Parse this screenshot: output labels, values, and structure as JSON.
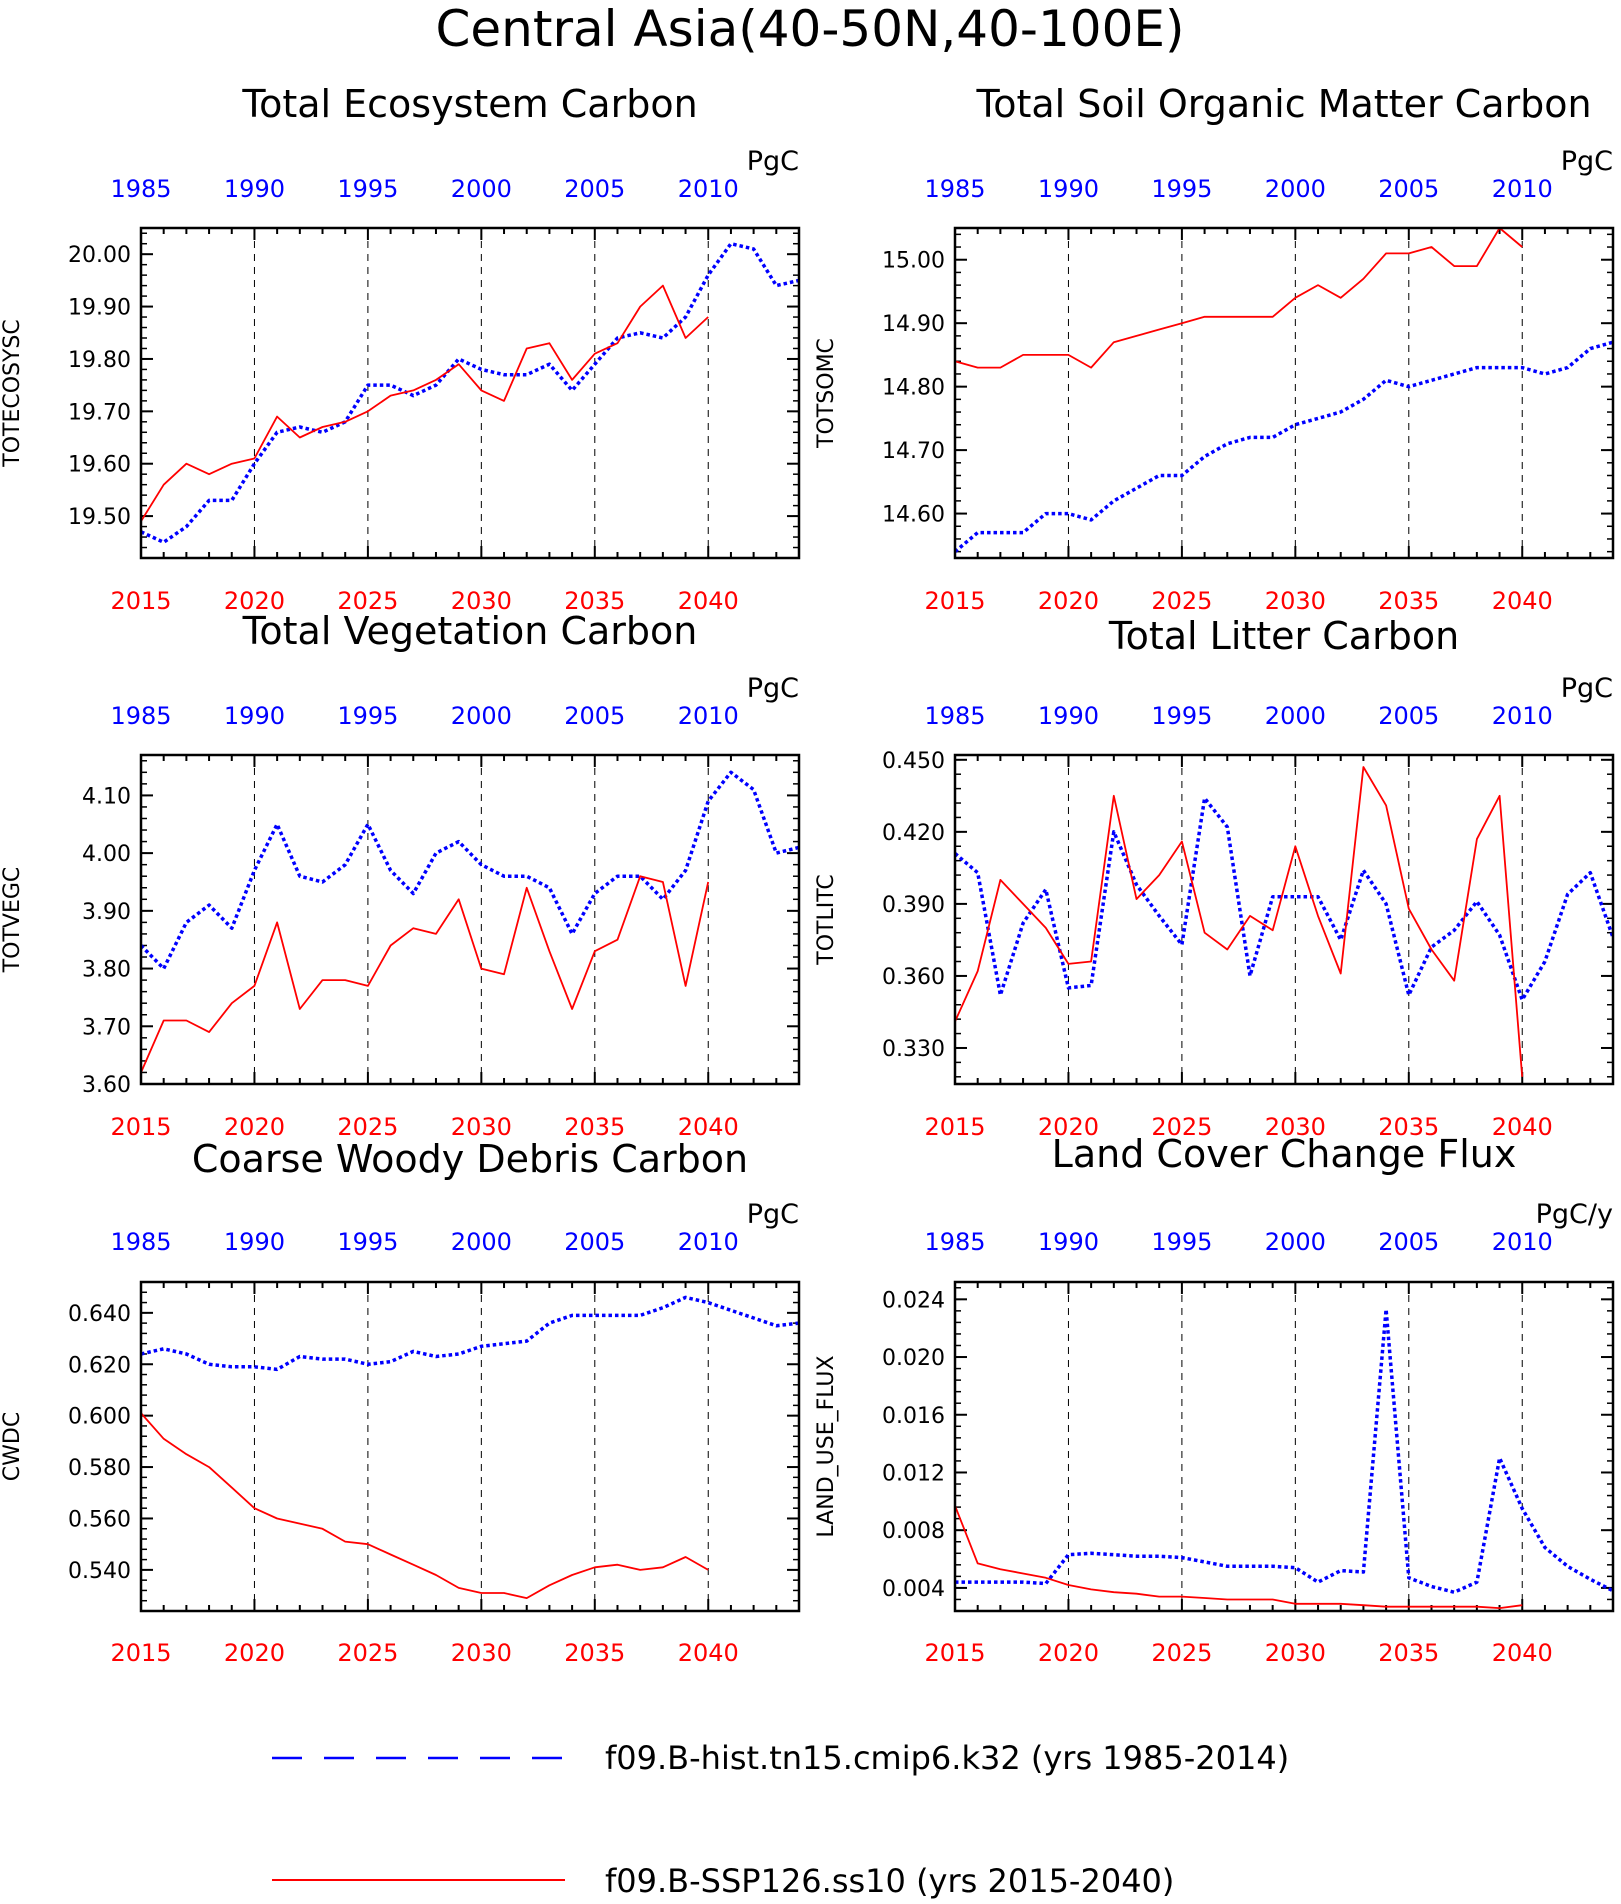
{
  "figure_title": "Central Asia(40-50N,40-100E)",
  "colors": {
    "hist": "#0000ff",
    "ssp": "#ff0000",
    "axis": "#000000",
    "grid": "#000000"
  },
  "axes": {
    "bottom_ticks": [
      "2015",
      "2020",
      "2025",
      "2030",
      "2035",
      "2040"
    ],
    "top_ticks": [
      "1985",
      "1990",
      "1995",
      "2000",
      "2005",
      "2010"
    ],
    "year_range_bottom": [
      2015,
      2044
    ],
    "year_range_top": [
      1985,
      2014
    ]
  },
  "legend": {
    "hist_label": "f09.B-hist.tn15.cmip6.k32 (yrs 1985-2014)",
    "ssp_label": "f09.B-SSP126.ss10 (yrs 2015-2040)"
  },
  "chart_data": [
    {
      "type": "line",
      "title": "Total Ecosystem Carbon",
      "ylabel": "TOTECOSYSC",
      "units": "PgC",
      "ylim": [
        19.42,
        20.05
      ],
      "yticks": [
        19.5,
        19.6,
        19.7,
        19.8,
        19.9,
        20.0
      ],
      "yticklabels": [
        "19.50",
        "19.60",
        "19.70",
        "19.80",
        "19.90",
        "20.00"
      ],
      "series": [
        {
          "values": [
            19.47,
            19.45,
            19.48,
            19.53,
            19.53,
            19.6,
            19.66,
            19.67,
            19.66,
            19.68,
            19.75,
            19.75,
            19.73,
            19.75,
            19.8,
            19.78,
            19.77,
            19.77,
            19.79,
            19.74,
            19.79,
            19.84,
            19.85,
            19.84,
            19.88,
            19.96,
            20.02,
            20.01,
            19.94,
            19.95
          ]
        },
        {
          "values": [
            19.49,
            19.56,
            19.6,
            19.58,
            19.6,
            19.61,
            19.69,
            19.65,
            19.67,
            19.68,
            19.7,
            19.73,
            19.74,
            19.76,
            19.79,
            19.74,
            19.72,
            19.82,
            19.83,
            19.76,
            19.81,
            19.83,
            19.9,
            19.94,
            19.84,
            19.88
          ]
        }
      ]
    },
    {
      "type": "line",
      "title": "Total Soil Organic Matter Carbon",
      "ylabel": "TOTSOMC",
      "units": "PgC",
      "ylim": [
        14.53,
        15.05
      ],
      "yticks": [
        14.6,
        14.7,
        14.8,
        14.9,
        15.0
      ],
      "yticklabels": [
        "14.60",
        "14.70",
        "14.80",
        "14.90",
        "15.00"
      ],
      "series": [
        {
          "values": [
            14.54,
            14.57,
            14.57,
            14.57,
            14.6,
            14.6,
            14.59,
            14.62,
            14.64,
            14.66,
            14.66,
            14.69,
            14.71,
            14.72,
            14.72,
            14.74,
            14.75,
            14.76,
            14.78,
            14.81,
            14.8,
            14.81,
            14.82,
            14.83,
            14.83,
            14.83,
            14.82,
            14.83,
            14.86,
            14.87
          ]
        },
        {
          "values": [
            14.84,
            14.83,
            14.83,
            14.85,
            14.85,
            14.85,
            14.83,
            14.87,
            14.88,
            14.89,
            14.9,
            14.91,
            14.91,
            14.91,
            14.91,
            14.94,
            14.96,
            14.94,
            14.97,
            15.01,
            15.01,
            15.02,
            14.99,
            14.99,
            15.05,
            15.02
          ]
        }
      ]
    },
    {
      "type": "line",
      "title": "Total Vegetation Carbon",
      "ylabel": "TOTVEGC",
      "units": "PgC",
      "ylim": [
        3.6,
        4.17
      ],
      "yticks": [
        3.6,
        3.7,
        3.8,
        3.9,
        4.0,
        4.1
      ],
      "yticklabels": [
        "3.60",
        "3.70",
        "3.80",
        "3.90",
        "4.00",
        "4.10"
      ],
      "series": [
        {
          "values": [
            3.84,
            3.8,
            3.88,
            3.91,
            3.87,
            3.97,
            4.05,
            3.96,
            3.95,
            3.98,
            4.05,
            3.97,
            3.93,
            4.0,
            4.02,
            3.98,
            3.96,
            3.96,
            3.94,
            3.86,
            3.93,
            3.96,
            3.96,
            3.92,
            3.97,
            4.09,
            4.14,
            4.11,
            4.0,
            4.01
          ]
        },
        {
          "values": [
            3.62,
            3.71,
            3.71,
            3.69,
            3.74,
            3.77,
            3.88,
            3.73,
            3.78,
            3.78,
            3.77,
            3.84,
            3.87,
            3.86,
            3.92,
            3.8,
            3.79,
            3.94,
            3.83,
            3.73,
            3.83,
            3.85,
            3.96,
            3.95,
            3.77,
            3.95
          ]
        }
      ]
    },
    {
      "type": "line",
      "title": "Total Litter Carbon",
      "ylabel": "TOTLITC",
      "units": "PgC",
      "ylim": [
        0.315,
        0.452
      ],
      "yticks": [
        0.33,
        0.36,
        0.39,
        0.42,
        0.45
      ],
      "yticklabels": [
        "0.330",
        "0.360",
        "0.390",
        "0.420",
        "0.450"
      ],
      "series": [
        {
          "values": [
            0.411,
            0.403,
            0.352,
            0.382,
            0.396,
            0.355,
            0.356,
            0.42,
            0.398,
            0.385,
            0.373,
            0.434,
            0.422,
            0.36,
            0.393,
            0.393,
            0.393,
            0.375,
            0.404,
            0.39,
            0.352,
            0.372,
            0.379,
            0.391,
            0.377,
            0.35,
            0.366,
            0.394,
            0.403,
            0.376
          ]
        },
        {
          "values": [
            0.341,
            0.362,
            0.4,
            0.39,
            0.38,
            0.365,
            0.366,
            0.435,
            0.392,
            0.402,
            0.416,
            0.378,
            0.371,
            0.385,
            0.379,
            0.414,
            0.385,
            0.361,
            0.447,
            0.431,
            0.388,
            0.371,
            0.358,
            0.417,
            0.435,
            0.318
          ]
        }
      ]
    },
    {
      "type": "line",
      "title": "Coarse Woody Debris Carbon",
      "ylabel": "CWDC",
      "units": "PgC",
      "ylim": [
        0.524,
        0.652
      ],
      "yticks": [
        0.54,
        0.56,
        0.58,
        0.6,
        0.62,
        0.64
      ],
      "yticklabels": [
        "0.540",
        "0.560",
        "0.580",
        "0.600",
        "0.620",
        "0.640"
      ],
      "series": [
        {
          "values": [
            0.624,
            0.626,
            0.624,
            0.62,
            0.619,
            0.619,
            0.618,
            0.623,
            0.622,
            0.622,
            0.62,
            0.621,
            0.625,
            0.623,
            0.624,
            0.627,
            0.628,
            0.629,
            0.636,
            0.639,
            0.639,
            0.639,
            0.639,
            0.642,
            0.646,
            0.644,
            0.641,
            0.638,
            0.635,
            0.636
          ]
        },
        {
          "values": [
            0.601,
            0.591,
            0.585,
            0.58,
            0.572,
            0.564,
            0.56,
            0.558,
            0.556,
            0.551,
            0.55,
            0.546,
            0.542,
            0.538,
            0.533,
            0.531,
            0.531,
            0.529,
            0.534,
            0.538,
            0.541,
            0.542,
            0.54,
            0.541,
            0.545,
            0.54
          ]
        }
      ]
    },
    {
      "type": "line",
      "title": "Land Cover Change Flux",
      "ylabel": "LAND_USE_FLUX",
      "units": "PgC/y",
      "ylim": [
        0.0024,
        0.0252
      ],
      "yticks": [
        0.004,
        0.008,
        0.012,
        0.016,
        0.02,
        0.024
      ],
      "yticklabels": [
        "0.004",
        "0.008",
        "0.012",
        "0.016",
        "0.020",
        "0.024"
      ],
      "series": [
        {
          "values": [
            0.0044,
            0.0044,
            0.0044,
            0.0044,
            0.0043,
            0.0063,
            0.0064,
            0.0063,
            0.0062,
            0.0062,
            0.0061,
            0.0058,
            0.0055,
            0.0055,
            0.0055,
            0.0054,
            0.0044,
            0.0052,
            0.0051,
            0.0233,
            0.0047,
            0.0041,
            0.0037,
            0.0044,
            0.013,
            0.0095,
            0.0068,
            0.0055,
            0.0046,
            0.0038
          ]
        },
        {
          "values": [
            0.0097,
            0.0057,
            0.0053,
            0.005,
            0.0047,
            0.0042,
            0.0039,
            0.0037,
            0.0036,
            0.0034,
            0.0034,
            0.0033,
            0.0032,
            0.0032,
            0.0032,
            0.0029,
            0.0029,
            0.0029,
            0.0028,
            0.0027,
            0.0027,
            0.0027,
            0.0027,
            0.0027,
            0.0026,
            0.0028
          ]
        }
      ]
    }
  ]
}
